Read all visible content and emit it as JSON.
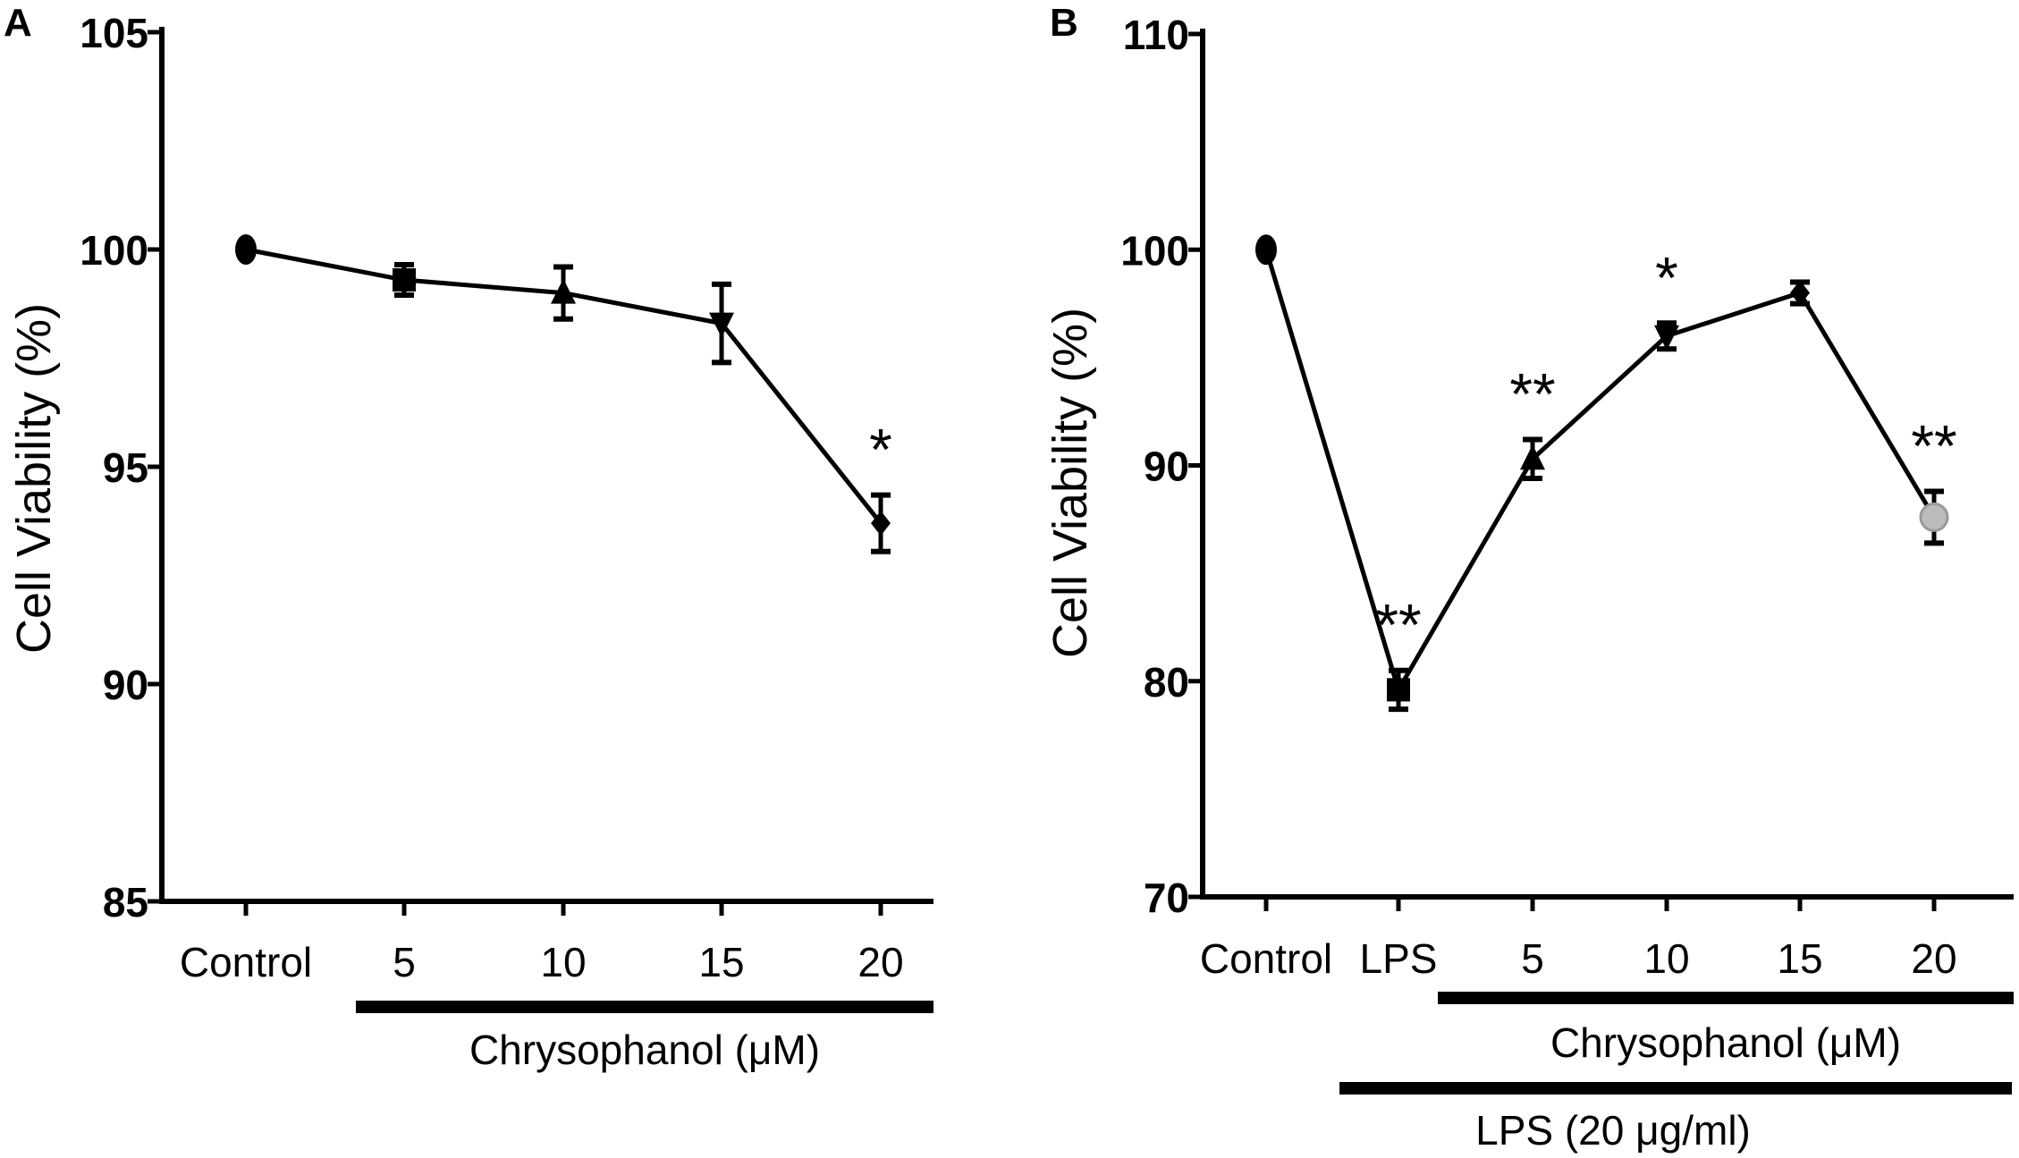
{
  "chart_data": [
    {
      "panel": "A",
      "type": "line",
      "ylabel": "Cell Viability (%)",
      "ylim": [
        85,
        105
      ],
      "yticks": [
        "85",
        "90",
        "95",
        "100",
        "105"
      ],
      "categories": [
        "Control",
        "5",
        "10",
        "15",
        "20"
      ],
      "values": [
        100,
        99.3,
        99.0,
        98.3,
        93.7
      ],
      "errors": [
        0,
        0.35,
        0.6,
        0.9,
        0.65
      ],
      "markers": [
        "circle",
        "square",
        "triangle-up",
        "triangle-down",
        "diamond"
      ],
      "significance": [
        "",
        "",
        "",
        "",
        "*"
      ],
      "group_bars": [
        {
          "label": "Chrysophanol (μM)",
          "from": 1,
          "to": 4
        }
      ]
    },
    {
      "panel": "B",
      "type": "line",
      "ylabel": "Cell Viability (%)",
      "ylim": [
        70,
        110
      ],
      "yticks": [
        "70",
        "80",
        "90",
        "100",
        "110"
      ],
      "categories": [
        "Control",
        "LPS",
        "5",
        "10",
        "15",
        "20"
      ],
      "values": [
        100,
        79.6,
        90.3,
        96.0,
        98.0,
        87.6
      ],
      "errors": [
        0,
        0.9,
        0.9,
        0.6,
        0.5,
        1.2
      ],
      "markers": [
        "circle",
        "square",
        "triangle-up",
        "triangle-down",
        "diamond",
        "circle-open"
      ],
      "significance": [
        "",
        "**",
        "**",
        "*",
        "",
        "**"
      ],
      "group_bars": [
        {
          "label": "Chrysophanol (μM)",
          "from": 2,
          "to": 5
        },
        {
          "label": "LPS (20 μg/ml)",
          "from": 1,
          "to": 5
        }
      ]
    }
  ]
}
